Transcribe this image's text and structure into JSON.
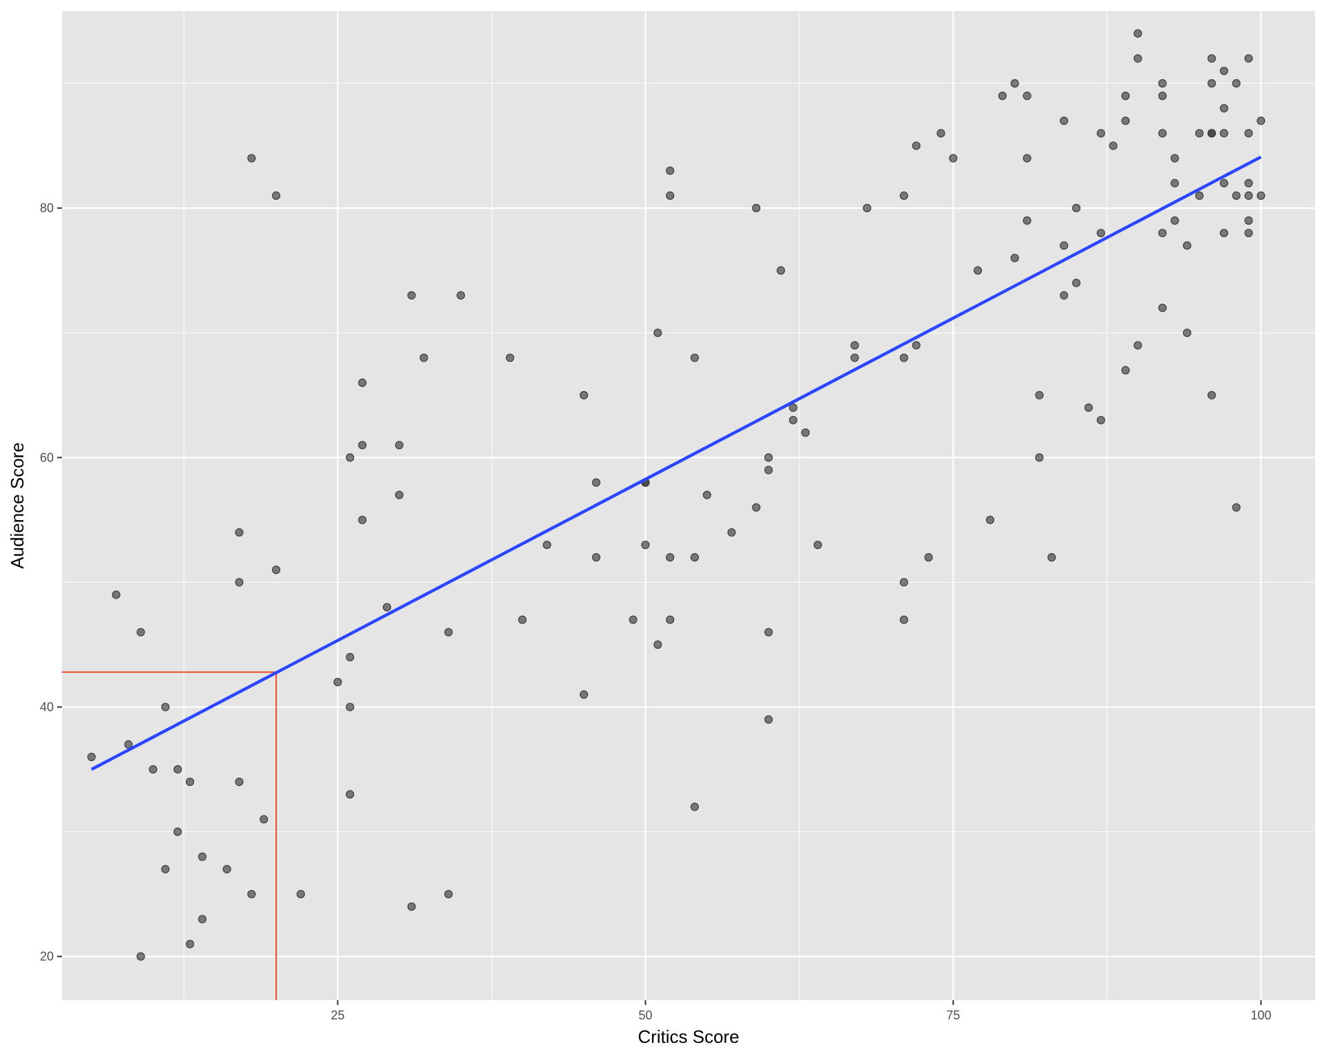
{
  "chart_data": {
    "type": "scatter",
    "xlabel": "Critics Score",
    "ylabel": "Audience Score",
    "xlim": [
      2.6,
      104.4
    ],
    "ylim": [
      16.5,
      95.8
    ],
    "x_ticks": [
      25,
      50,
      75,
      100
    ],
    "y_ticks": [
      20,
      40,
      60,
      80
    ],
    "x_minor_ticks": [
      12.5,
      37.5,
      62.5,
      87.5
    ],
    "y_minor_ticks": [
      30,
      50,
      70,
      90
    ],
    "grid": true,
    "colors": {
      "panel": "#e5e5e5",
      "grid": "#ffffff",
      "points": "#333333",
      "fit_line": "#2a47ff",
      "reference": "#f04a2a"
    },
    "points": [
      [
        5,
        36
      ],
      [
        7,
        49
      ],
      [
        8,
        37
      ],
      [
        9,
        46
      ],
      [
        9,
        20
      ],
      [
        10,
        35
      ],
      [
        11,
        40
      ],
      [
        11,
        27
      ],
      [
        12,
        35
      ],
      [
        12,
        30
      ],
      [
        13,
        34
      ],
      [
        13,
        21
      ],
      [
        14,
        28
      ],
      [
        14,
        23
      ],
      [
        16,
        27
      ],
      [
        17,
        54
      ],
      [
        17,
        50
      ],
      [
        17,
        34
      ],
      [
        18,
        84
      ],
      [
        18,
        25
      ],
      [
        19,
        31
      ],
      [
        20,
        81
      ],
      [
        20,
        51
      ],
      [
        22,
        25
      ],
      [
        25,
        42
      ],
      [
        26,
        60
      ],
      [
        26,
        44
      ],
      [
        26,
        40
      ],
      [
        26,
        33
      ],
      [
        27,
        66
      ],
      [
        27,
        61
      ],
      [
        27,
        55
      ],
      [
        29,
        48
      ],
      [
        30,
        61
      ],
      [
        30,
        57
      ],
      [
        31,
        73
      ],
      [
        31,
        24
      ],
      [
        32,
        68
      ],
      [
        34,
        46
      ],
      [
        34,
        25
      ],
      [
        35,
        73
      ],
      [
        39,
        68
      ],
      [
        40,
        47
      ],
      [
        42,
        53
      ],
      [
        45,
        65
      ],
      [
        45,
        41
      ],
      [
        46,
        58
      ],
      [
        46,
        52
      ],
      [
        49,
        47
      ],
      [
        50,
        58
      ],
      [
        50,
        58
      ],
      [
        50,
        53
      ],
      [
        51,
        70
      ],
      [
        51,
        45
      ],
      [
        52,
        83
      ],
      [
        52,
        81
      ],
      [
        52,
        52
      ],
      [
        52,
        47
      ],
      [
        54,
        68
      ],
      [
        54,
        52
      ],
      [
        54,
        32
      ],
      [
        55,
        57
      ],
      [
        57,
        54
      ],
      [
        59,
        80
      ],
      [
        59,
        56
      ],
      [
        60,
        60
      ],
      [
        60,
        59
      ],
      [
        60,
        46
      ],
      [
        60,
        39
      ],
      [
        61,
        75
      ],
      [
        62,
        64
      ],
      [
        62,
        63
      ],
      [
        63,
        62
      ],
      [
        64,
        53
      ],
      [
        67,
        69
      ],
      [
        67,
        68
      ],
      [
        68,
        80
      ],
      [
        71,
        81
      ],
      [
        71,
        68
      ],
      [
        71,
        50
      ],
      [
        71,
        47
      ],
      [
        72,
        85
      ],
      [
        72,
        69
      ],
      [
        73,
        52
      ],
      [
        74,
        86
      ],
      [
        75,
        84
      ],
      [
        77,
        75
      ],
      [
        78,
        55
      ],
      [
        79,
        89
      ],
      [
        80,
        90
      ],
      [
        80,
        76
      ],
      [
        81,
        89
      ],
      [
        81,
        84
      ],
      [
        81,
        79
      ],
      [
        82,
        65
      ],
      [
        82,
        60
      ],
      [
        83,
        52
      ],
      [
        84,
        87
      ],
      [
        84,
        77
      ],
      [
        84,
        73
      ],
      [
        85,
        80
      ],
      [
        85,
        74
      ],
      [
        86,
        64
      ],
      [
        87,
        86
      ],
      [
        87,
        78
      ],
      [
        87,
        63
      ],
      [
        88,
        85
      ],
      [
        89,
        89
      ],
      [
        89,
        87
      ],
      [
        89,
        67
      ],
      [
        90,
        94
      ],
      [
        90,
        92
      ],
      [
        90,
        69
      ],
      [
        92,
        90
      ],
      [
        92,
        89
      ],
      [
        92,
        86
      ],
      [
        92,
        78
      ],
      [
        92,
        72
      ],
      [
        93,
        84
      ],
      [
        93,
        82
      ],
      [
        93,
        79
      ],
      [
        94,
        77
      ],
      [
        94,
        70
      ],
      [
        95,
        86
      ],
      [
        95,
        81
      ],
      [
        96,
        92
      ],
      [
        96,
        90
      ],
      [
        96,
        86
      ],
      [
        96,
        86
      ],
      [
        96,
        65
      ],
      [
        97,
        91
      ],
      [
        97,
        88
      ],
      [
        97,
        86
      ],
      [
        97,
        82
      ],
      [
        97,
        78
      ],
      [
        98,
        90
      ],
      [
        98,
        81
      ],
      [
        98,
        56
      ],
      [
        99,
        92
      ],
      [
        99,
        86
      ],
      [
        99,
        82
      ],
      [
        99,
        81
      ],
      [
        99,
        79
      ],
      [
        99,
        78
      ],
      [
        100,
        87
      ],
      [
        100,
        81
      ]
    ],
    "fit_line": {
      "x": [
        5,
        100
      ],
      "y": [
        35.0,
        84.1
      ]
    },
    "reference_lines": {
      "x": 20,
      "y": 42.8
    }
  }
}
